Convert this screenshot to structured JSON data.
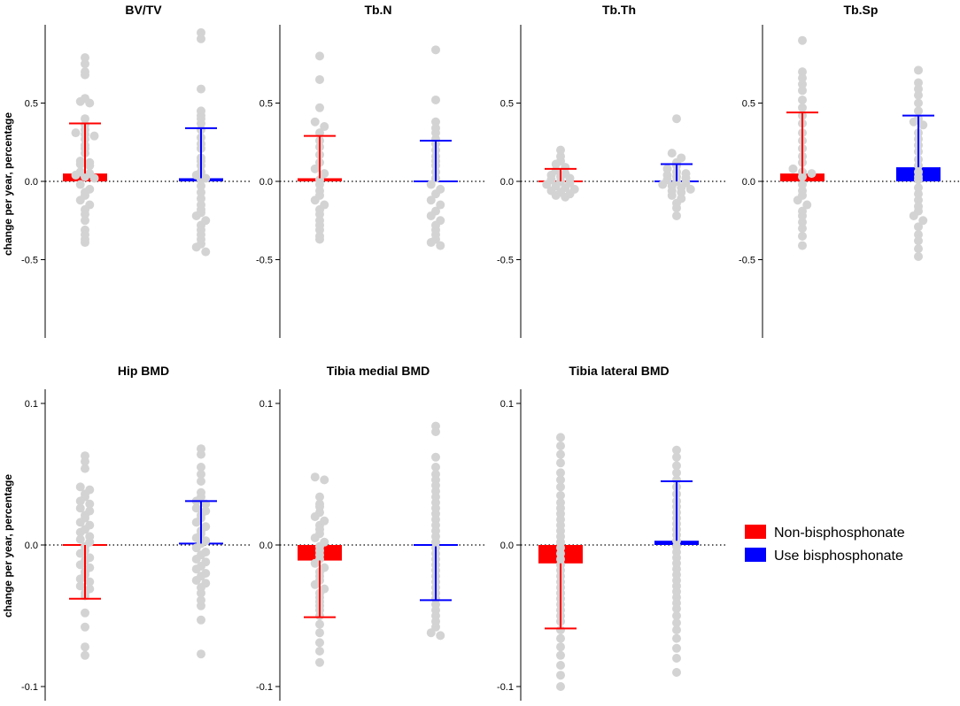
{
  "figure": {
    "y_axis_label": "change per year, percentage",
    "zero_line_style": "dotted"
  },
  "legend": {
    "position": "right",
    "items": [
      {
        "label": "Non-bisphosphonate",
        "color": "#ff0000"
      },
      {
        "label": "Use bisphosphonate",
        "color": "#0000ff"
      }
    ]
  },
  "chart_data": [
    {
      "type": "bar",
      "title": "BV/TV",
      "categories": [
        "Non-bisphosphonate",
        "Use bisphosphonate"
      ],
      "colors": [
        "#ff0000",
        "#0000ff"
      ],
      "ylim": [
        -1.0,
        1.0
      ],
      "yticks": [
        0.5,
        0.0,
        -0.5
      ],
      "ytick_labels": [
        "0.5",
        "0.0",
        "-0.5"
      ],
      "values": [
        0.05,
        0.02
      ],
      "error_bars": [
        {
          "upper": 0.37
        },
        {
          "upper": 0.34
        }
      ],
      "points": [
        [
          0.79,
          0.75,
          0.7,
          0.68,
          0.53,
          0.51,
          0.5,
          0.4,
          0.36,
          0.33,
          0.31,
          0.3,
          0.29,
          0.27,
          0.23,
          0.21,
          0.18,
          0.13,
          0.12,
          0.11,
          0.1,
          0.06,
          0.05,
          0.04,
          0.03,
          0.02,
          -0.02,
          -0.05,
          -0.07,
          -0.09,
          -0.12,
          -0.15,
          -0.18,
          -0.21,
          -0.25,
          -0.31,
          -0.34,
          -0.37,
          -0.39
        ],
        [
          0.95,
          0.91,
          0.59,
          0.45,
          0.42,
          0.4,
          0.37,
          0.33,
          0.28,
          0.24,
          0.21,
          0.15,
          0.13,
          0.1,
          0.06,
          0.04,
          0.02,
          0.01,
          -0.03,
          -0.07,
          -0.11,
          -0.15,
          -0.18,
          -0.2,
          -0.22,
          -0.25,
          -0.28,
          -0.31,
          -0.34,
          -0.37,
          -0.4,
          -0.42,
          -0.45
        ]
      ]
    },
    {
      "type": "bar",
      "title": "Tb.N",
      "categories": [
        "Non-bisphosphonate",
        "Use bisphosphonate"
      ],
      "colors": [
        "#ff0000",
        "#0000ff"
      ],
      "ylim": [
        -1.0,
        1.0
      ],
      "yticks": [
        0.5,
        0.0,
        -0.5
      ],
      "ytick_labels": [
        "0.5",
        "0.0",
        "-0.5"
      ],
      "values": [
        0.02,
        0.0
      ],
      "error_bars": [
        {
          "upper": 0.29
        },
        {
          "upper": 0.26
        }
      ],
      "points": [
        [
          0.8,
          0.65,
          0.47,
          0.38,
          0.35,
          0.31,
          0.26,
          0.22,
          0.17,
          0.12,
          0.08,
          0.05,
          0.01,
          -0.02,
          -0.06,
          -0.09,
          -0.12,
          -0.15,
          -0.18,
          -0.21,
          -0.25,
          -0.28,
          -0.31,
          -0.35,
          -0.37
        ],
        [
          0.84,
          0.52,
          0.38,
          0.34,
          0.31,
          0.27,
          0.24,
          0.2,
          0.16,
          0.13,
          0.1,
          0.06,
          0.02,
          -0.02,
          -0.05,
          -0.08,
          -0.12,
          -0.15,
          -0.19,
          -0.22,
          -0.25,
          -0.28,
          -0.31,
          -0.34,
          -0.37,
          -0.39,
          -0.41
        ]
      ]
    },
    {
      "type": "bar",
      "title": "Tb.Th",
      "categories": [
        "Non-bisphosphonate",
        "Use bisphosphonate"
      ],
      "colors": [
        "#ff0000",
        "#0000ff"
      ],
      "ylim": [
        -1.0,
        1.0
      ],
      "yticks": [
        0.5,
        0.0,
        -0.5
      ],
      "ytick_labels": [
        "0.5",
        "0.0",
        "-0.5"
      ],
      "values": [
        0.0,
        0.0
      ],
      "error_bars": [
        {
          "upper": 0.08
        },
        {
          "upper": 0.11
        }
      ],
      "points": [
        [
          0.2,
          0.16,
          0.13,
          0.11,
          0.09,
          0.07,
          0.05,
          0.04,
          0.03,
          0.02,
          0.01,
          0.0,
          -0.01,
          -0.02,
          -0.03,
          -0.04,
          -0.05,
          -0.06,
          -0.07,
          -0.08,
          -0.09,
          -0.1
        ],
        [
          0.4,
          0.18,
          0.15,
          0.12,
          0.1,
          0.08,
          0.06,
          0.05,
          0.04,
          0.03,
          0.02,
          0.01,
          0.0,
          -0.01,
          -0.02,
          -0.03,
          -0.04,
          -0.05,
          -0.06,
          -0.07,
          -0.09,
          -0.11,
          -0.14,
          -0.17,
          -0.22
        ]
      ]
    },
    {
      "type": "bar",
      "title": "Tb.Sp",
      "categories": [
        "Non-bisphosphonate",
        "Use bisphosphonate"
      ],
      "colors": [
        "#ff0000",
        "#0000ff"
      ],
      "ylim": [
        -1.0,
        1.0
      ],
      "yticks": [
        0.5,
        0.0,
        -0.5
      ],
      "ytick_labels": [
        "0.5",
        "0.0",
        "-0.5"
      ],
      "values": [
        0.05,
        0.09
      ],
      "error_bars": [
        {
          "upper": 0.44
        },
        {
          "upper": 0.42
        }
      ],
      "points": [
        [
          0.9,
          0.7,
          0.66,
          0.62,
          0.58,
          0.52,
          0.47,
          0.42,
          0.37,
          0.31,
          0.26,
          0.21,
          0.16,
          0.12,
          0.08,
          0.06,
          0.05,
          0.03,
          -0.02,
          -0.06,
          -0.09,
          -0.12,
          -0.15,
          -0.19,
          -0.22,
          -0.26,
          -0.3,
          -0.35,
          -0.41
        ],
        [
          0.71,
          0.63,
          0.59,
          0.55,
          0.5,
          0.45,
          0.4,
          0.38,
          0.36,
          0.31,
          0.27,
          0.23,
          0.19,
          0.14,
          0.1,
          0.06,
          0.03,
          0.01,
          -0.04,
          -0.08,
          -0.12,
          -0.16,
          -0.19,
          -0.22,
          -0.25,
          -0.29,
          -0.34,
          -0.38,
          -0.43,
          -0.48
        ]
      ]
    },
    {
      "type": "bar",
      "title": "Hip BMD",
      "categories": [
        "Non-bisphosphonate",
        "Use bisphosphonate"
      ],
      "colors": [
        "#ff0000",
        "#0000ff"
      ],
      "ylim": [
        -0.11,
        0.11
      ],
      "yticks": [
        0.1,
        0.0,
        -0.1
      ],
      "ytick_labels": [
        "0.1",
        "0.0",
        "-0.1"
      ],
      "values": [
        0.0,
        0.001
      ],
      "error_bars": [
        {
          "lower": -0.038
        },
        {
          "upper": 0.031
        }
      ],
      "points": [
        [
          0.063,
          0.059,
          0.054,
          0.041,
          0.039,
          0.036,
          0.034,
          0.031,
          0.029,
          0.026,
          0.024,
          0.021,
          0.019,
          0.016,
          0.014,
          0.011,
          0.009,
          0.006,
          0.004,
          0.002,
          -0.001,
          -0.004,
          -0.006,
          -0.009,
          -0.011,
          -0.014,
          -0.016,
          -0.019,
          -0.021,
          -0.024,
          -0.026,
          -0.029,
          -0.031,
          -0.034,
          -0.036,
          -0.048,
          -0.058,
          -0.072,
          -0.078
        ],
        [
          0.068,
          0.064,
          0.055,
          0.05,
          0.045,
          0.037,
          0.034,
          0.031,
          0.029,
          0.026,
          0.024,
          0.021,
          0.019,
          0.016,
          0.013,
          0.01,
          0.008,
          0.005,
          0.003,
          0.001,
          -0.002,
          -0.005,
          -0.007,
          -0.01,
          -0.012,
          -0.015,
          -0.017,
          -0.02,
          -0.022,
          -0.025,
          -0.027,
          -0.03,
          -0.034,
          -0.039,
          -0.043,
          -0.053,
          -0.077
        ]
      ]
    },
    {
      "type": "bar",
      "title": "Tibia medial BMD",
      "categories": [
        "Non-bisphosphonate",
        "Use bisphosphonate"
      ],
      "colors": [
        "#ff0000",
        "#0000ff"
      ],
      "ylim": [
        -0.11,
        0.11
      ],
      "yticks": [
        0.1,
        0.0,
        -0.1
      ],
      "ytick_labels": [
        "0.1",
        "0.0",
        "-0.1"
      ],
      "values": [
        -0.011,
        -0.001
      ],
      "error_bars": [
        {
          "lower": -0.051
        },
        {
          "lower": -0.039
        }
      ],
      "points": [
        [
          0.048,
          0.046,
          0.034,
          0.029,
          0.027,
          0.023,
          0.02,
          0.017,
          0.014,
          0.011,
          0.008,
          0.005,
          0.002,
          -0.001,
          -0.004,
          -0.007,
          -0.01,
          -0.013,
          -0.016,
          -0.019,
          -0.022,
          -0.025,
          -0.028,
          -0.031,
          -0.034,
          -0.037,
          -0.04,
          -0.043,
          -0.046,
          -0.05,
          -0.056,
          -0.062,
          -0.069,
          -0.075,
          -0.083
        ],
        [
          0.084,
          0.08,
          0.062,
          0.055,
          0.05,
          0.046,
          0.042,
          0.038,
          0.034,
          0.03,
          0.026,
          0.022,
          0.018,
          0.014,
          0.01,
          0.006,
          0.002,
          -0.002,
          -0.006,
          -0.01,
          -0.014,
          -0.018,
          -0.022,
          -0.026,
          -0.03,
          -0.034,
          -0.038,
          -0.042,
          -0.046,
          -0.05,
          -0.054,
          -0.058,
          -0.062,
          -0.064
        ]
      ]
    },
    {
      "type": "bar",
      "title": "Tibia lateral BMD",
      "categories": [
        "Non-bisphosphonate",
        "Use bisphosphonate"
      ],
      "colors": [
        "#ff0000",
        "#0000ff"
      ],
      "ylim": [
        -0.11,
        0.11
      ],
      "yticks": [
        0.1,
        0.0,
        -0.1
      ],
      "ytick_labels": [
        "0.1",
        "0.0",
        "-0.1"
      ],
      "values": [
        -0.013,
        0.003
      ],
      "error_bars": [
        {
          "lower": -0.059
        },
        {
          "upper": 0.045
        }
      ],
      "points": [
        [
          0.076,
          0.07,
          0.064,
          0.058,
          0.051,
          0.046,
          0.041,
          0.035,
          0.03,
          0.026,
          0.022,
          0.018,
          0.014,
          0.01,
          0.006,
          0.002,
          -0.002,
          -0.006,
          -0.01,
          -0.014,
          -0.018,
          -0.022,
          -0.026,
          -0.03,
          -0.034,
          -0.038,
          -0.042,
          -0.046,
          -0.05,
          -0.054,
          -0.06,
          -0.066,
          -0.072,
          -0.078,
          -0.085,
          -0.092,
          -0.1
        ],
        [
          0.067,
          0.062,
          0.056,
          0.051,
          0.046,
          0.041,
          0.036,
          0.031,
          0.027,
          0.023,
          0.019,
          0.015,
          0.011,
          0.007,
          0.003,
          -0.001,
          -0.005,
          -0.009,
          -0.013,
          -0.017,
          -0.021,
          -0.025,
          -0.029,
          -0.033,
          -0.037,
          -0.041,
          -0.045,
          -0.05,
          -0.055,
          -0.06,
          -0.066,
          -0.073,
          -0.08,
          -0.09
        ]
      ]
    }
  ]
}
